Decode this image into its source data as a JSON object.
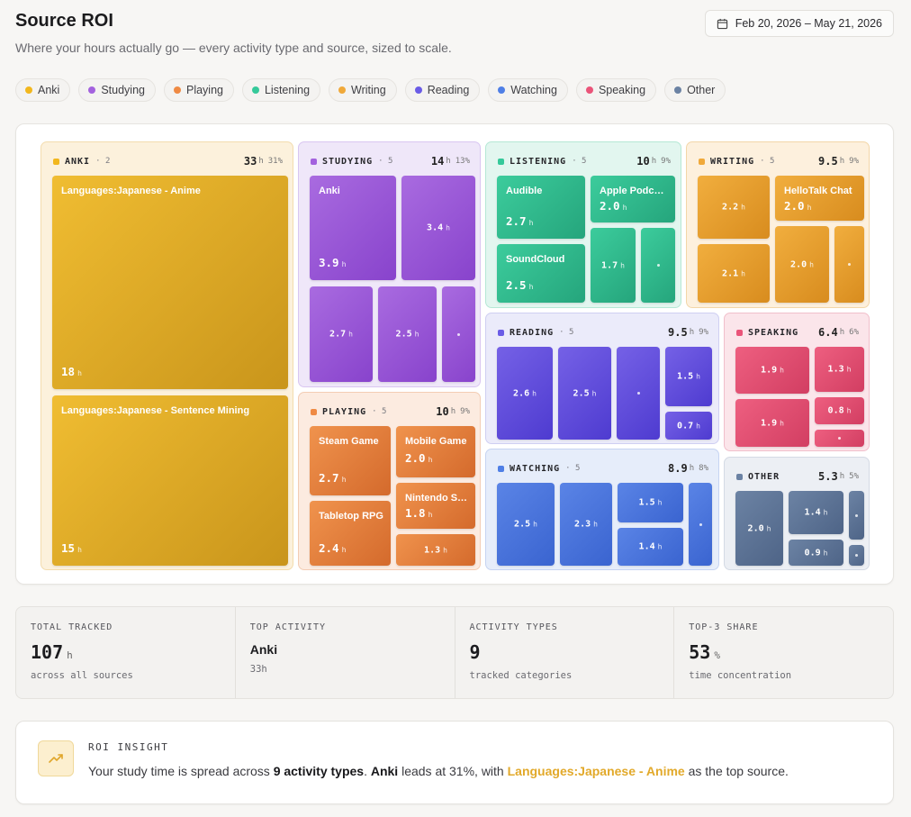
{
  "header": {
    "title": "Source ROI",
    "subtitle": "Where your hours actually go — every activity type and source, sized to scale.",
    "date_range": "Feb 20, 2026 – May 21, 2026"
  },
  "legend": [
    {
      "label": "Anki",
      "color": "#f2b71d"
    },
    {
      "label": "Studying",
      "color": "#a362de"
    },
    {
      "label": "Playing",
      "color": "#ef8a44"
    },
    {
      "label": "Listening",
      "color": "#35c99a"
    },
    {
      "label": "Writing",
      "color": "#f0a93a"
    },
    {
      "label": "Reading",
      "color": "#6a5ce6"
    },
    {
      "label": "Watching",
      "color": "#4f7fe6"
    },
    {
      "label": "Speaking",
      "color": "#ea5479"
    },
    {
      "label": "Other",
      "color": "#6b82a3"
    }
  ],
  "treemap": {
    "hour_unit": "h",
    "groups": {
      "anki": {
        "name": "ANKI",
        "count": "2",
        "hours": "33",
        "pct": "31%",
        "tiles": [
          {
            "name": "Languages:Japanese - Anime",
            "value": "18"
          },
          {
            "name": "Languages:Japanese - Sentence Mining",
            "value": "15"
          }
        ]
      },
      "studying": {
        "name": "STUDYING",
        "count": "5",
        "hours": "14",
        "pct": "13%",
        "tiles": [
          {
            "name": "Anki",
            "value": "3.9"
          },
          {
            "name": "",
            "value": "3.4"
          },
          {
            "name": "",
            "value": "2.7"
          },
          {
            "name": "",
            "value": "2.5"
          },
          {
            "name": "",
            "value": ""
          }
        ]
      },
      "listening": {
        "name": "LISTENING",
        "count": "5",
        "hours": "10",
        "pct": "9%",
        "tiles": [
          {
            "name": "Audible",
            "value": "2.7"
          },
          {
            "name": "Apple Podca…",
            "value": "2.0"
          },
          {
            "name": "SoundCloud",
            "value": "2.5"
          },
          {
            "name": "",
            "value": "1.7"
          },
          {
            "name": "",
            "value": ""
          }
        ]
      },
      "writing": {
        "name": "WRITING",
        "count": "5",
        "hours": "9.5",
        "pct": "9%",
        "tiles": [
          {
            "name": "",
            "value": "2.2"
          },
          {
            "name": "HelloTalk Chat",
            "value": "2.0"
          },
          {
            "name": "",
            "value": "2.1"
          },
          {
            "name": "",
            "value": "2.0"
          },
          {
            "name": "",
            "value": ""
          }
        ]
      },
      "playing": {
        "name": "PLAYING",
        "count": "5",
        "hours": "10",
        "pct": "9%",
        "tiles": [
          {
            "name": "Steam Game",
            "value": "2.7"
          },
          {
            "name": "Mobile Game",
            "value": "2.0"
          },
          {
            "name": "Nintendo S…",
            "value": "1.8"
          },
          {
            "name": "Tabletop RPG",
            "value": "2.4"
          },
          {
            "name": "",
            "value": "1.3"
          }
        ]
      },
      "reading": {
        "name": "READING",
        "count": "5",
        "hours": "9.5",
        "pct": "9%",
        "tiles": [
          {
            "name": "",
            "value": "2.6"
          },
          {
            "name": "",
            "value": "2.5"
          },
          {
            "name": "",
            "value": ""
          },
          {
            "name": "",
            "value": "1.5"
          },
          {
            "name": "",
            "value": "0.7"
          }
        ]
      },
      "speaking": {
        "name": "SPEAKING",
        "count": "",
        "hours": "6.4",
        "pct": "6%",
        "tiles": [
          {
            "name": "",
            "value": "1.9"
          },
          {
            "name": "",
            "value": "1.3"
          },
          {
            "name": "",
            "value": "1.9"
          },
          {
            "name": "",
            "value": "0.8"
          },
          {
            "name": "",
            "value": ""
          }
        ]
      },
      "watching": {
        "name": "WATCHING",
        "count": "5",
        "hours": "8.9",
        "pct": "8%",
        "tiles": [
          {
            "name": "",
            "value": "2.5"
          },
          {
            "name": "",
            "value": "2.3"
          },
          {
            "name": "",
            "value": "1.5"
          },
          {
            "name": "",
            "value": "1.4"
          },
          {
            "name": "",
            "value": ""
          }
        ]
      },
      "other": {
        "name": "OTHER",
        "count": "",
        "hours": "5.3",
        "pct": "5%",
        "tiles": [
          {
            "name": "",
            "value": "2.0"
          },
          {
            "name": "",
            "value": "1.4"
          },
          {
            "name": "",
            "value": "0.9"
          },
          {
            "name": "",
            "value": ""
          },
          {
            "name": "",
            "value": ""
          }
        ]
      }
    }
  },
  "stats": [
    {
      "label": "TOTAL TRACKED",
      "value": "107",
      "unit": "h",
      "sub": "across all sources"
    },
    {
      "label": "TOP ACTIVITY",
      "value": "Anki",
      "unit": "",
      "sub": "33h"
    },
    {
      "label": "ACTIVITY TYPES",
      "value": "9",
      "unit": "",
      "sub": "tracked categories"
    },
    {
      "label": "TOP-3 SHARE",
      "value": "53",
      "unit": "%",
      "sub": "time concentration"
    }
  ],
  "insight": {
    "label": "ROI INSIGHT",
    "text_1": "Your study time is spread across ",
    "bold_1": "9 activity types",
    "text_2": ". ",
    "bold_2": "Anki",
    "text_3": " leads at 31%, with ",
    "highlight": "Languages:Japanese - Anime",
    "text_4": " as the top source."
  }
}
